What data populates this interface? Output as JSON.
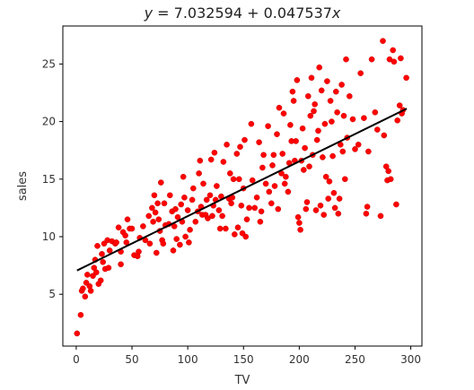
{
  "chart_data": {
    "type": "scatter",
    "title": "y = 7.032594 + 0.047537x",
    "title_parts": {
      "y": "y",
      "eq": " = 7.032594 + 0.047537",
      "x": "x"
    },
    "xlabel": "TV",
    "ylabel": "sales",
    "xlim": [
      -12,
      310
    ],
    "ylim": [
      0.5,
      28.3
    ],
    "xticks": [
      0,
      50,
      100,
      150,
      200,
      250,
      300
    ],
    "yticks": [
      5,
      10,
      15,
      20,
      25
    ],
    "grid": false,
    "colors": {
      "points": "#ff0000",
      "points_edge": "#c00000",
      "line": "#000000",
      "axes": "#000000"
    },
    "regression": {
      "intercept": 7.032594,
      "slope": 0.047537,
      "x_range": [
        0.7,
        296.4
      ]
    },
    "points": [
      [
        0.7,
        1.6
      ],
      [
        4,
        3.2
      ],
      [
        5,
        5.3
      ],
      [
        6,
        5.5
      ],
      [
        8,
        4.8
      ],
      [
        9,
        6.0
      ],
      [
        10,
        6.7
      ],
      [
        12,
        5.7
      ],
      [
        13,
        5.3
      ],
      [
        15,
        6.6
      ],
      [
        16,
        7.3
      ],
      [
        17,
        8.0
      ],
      [
        18,
        6.9
      ],
      [
        19,
        9.2
      ],
      [
        20,
        5.9
      ],
      [
        22,
        6.2
      ],
      [
        23,
        8.5
      ],
      [
        24,
        7.8
      ],
      [
        25,
        9.4
      ],
      [
        26,
        7.2
      ],
      [
        28,
        9.7
      ],
      [
        29,
        7.3
      ],
      [
        30,
        8.8
      ],
      [
        32,
        9.6
      ],
      [
        35,
        9.4
      ],
      [
        36,
        9.5
      ],
      [
        38,
        10.8
      ],
      [
        40,
        8.7
      ],
      [
        40,
        7.6
      ],
      [
        42,
        10.4
      ],
      [
        44,
        10.1
      ],
      [
        45,
        9.5
      ],
      [
        46,
        11.5
      ],
      [
        48,
        10.7
      ],
      [
        50,
        10.7
      ],
      [
        52,
        8.4
      ],
      [
        55,
        8.3
      ],
      [
        56,
        8.7
      ],
      [
        57,
        9.9
      ],
      [
        60,
        10.9
      ],
      [
        62,
        9.7
      ],
      [
        65,
        11.8
      ],
      [
        66,
        9.4
      ],
      [
        68,
        12.5
      ],
      [
        69,
        11.3
      ],
      [
        70,
        13.6
      ],
      [
        71,
        12.1
      ],
      [
        72,
        8.6
      ],
      [
        73,
        12.9
      ],
      [
        74,
        11.5
      ],
      [
        75,
        10.5
      ],
      [
        76,
        14.7
      ],
      [
        77,
        9.7
      ],
      [
        78,
        9.4
      ],
      [
        79,
        12.9
      ],
      [
        80,
        11.0
      ],
      [
        83,
        11.1
      ],
      [
        84,
        13.6
      ],
      [
        86,
        12.2
      ],
      [
        87,
        8.8
      ],
      [
        88,
        10.9
      ],
      [
        89,
        12.4
      ],
      [
        90,
        9.8
      ],
      [
        91,
        11.7
      ],
      [
        93,
        9.3
      ],
      [
        94,
        12.8
      ],
      [
        95,
        11.3
      ],
      [
        96,
        15.2
      ],
      [
        97,
        13.4
      ],
      [
        98,
        10.0
      ],
      [
        100,
        12.3
      ],
      [
        101,
        9.5
      ],
      [
        102,
        10.6
      ],
      [
        104,
        13.2
      ],
      [
        105,
        14.2
      ],
      [
        107,
        11.3
      ],
      [
        109,
        12.2
      ],
      [
        110,
        15.5
      ],
      [
        111,
        16.6
      ],
      [
        112,
        12.6
      ],
      [
        113,
        11.9
      ],
      [
        114,
        14.6
      ],
      [
        116,
        11.9
      ],
      [
        117,
        13.2
      ],
      [
        118,
        11.6
      ],
      [
        120,
        13.6
      ],
      [
        121,
        16.7
      ],
      [
        122,
        11.8
      ],
      [
        123,
        12.7
      ],
      [
        124,
        17.3
      ],
      [
        125,
        13.2
      ],
      [
        126,
        14.4
      ],
      [
        128,
        12.3
      ],
      [
        129,
        10.7
      ],
      [
        130,
        13.5
      ],
      [
        131,
        11.8
      ],
      [
        132,
        16.5
      ],
      [
        134,
        10.7
      ],
      [
        135,
        18.0
      ],
      [
        137,
        13.3
      ],
      [
        138,
        15.5
      ],
      [
        139,
        12.9
      ],
      [
        140,
        13.4
      ],
      [
        141,
        15.0
      ],
      [
        142,
        10.2
      ],
      [
        144,
        17.2
      ],
      [
        145,
        10.8
      ],
      [
        146,
        15.0
      ],
      [
        147,
        17.8
      ],
      [
        148,
        12.7
      ],
      [
        149,
        10.3
      ],
      [
        150,
        14.2
      ],
      [
        151,
        18.4
      ],
      [
        152,
        10.0
      ],
      [
        153,
        11.5
      ],
      [
        155,
        12.5
      ],
      [
        157,
        19.8
      ],
      [
        158,
        14.9
      ],
      [
        160,
        12.5
      ],
      [
        162,
        13.4
      ],
      [
        164,
        18.2
      ],
      [
        165,
        11.3
      ],
      [
        166,
        12.2
      ],
      [
        167,
        16.0
      ],
      [
        168,
        17.1
      ],
      [
        170,
        14.6
      ],
      [
        172,
        19.6
      ],
      [
        173,
        13.9
      ],
      [
        175,
        12.9
      ],
      [
        176,
        16.2
      ],
      [
        177,
        17.1
      ],
      [
        178,
        14.4
      ],
      [
        180,
        18.9
      ],
      [
        181,
        12.4
      ],
      [
        182,
        21.2
      ],
      [
        184,
        15.5
      ],
      [
        185,
        17.2
      ],
      [
        186,
        20.7
      ],
      [
        187,
        14.6
      ],
      [
        188,
        15.2
      ],
      [
        190,
        13.9
      ],
      [
        191,
        16.4
      ],
      [
        192,
        19.7
      ],
      [
        193,
        18.3
      ],
      [
        194,
        22.6
      ],
      [
        195,
        21.8
      ],
      [
        196,
        16.6
      ],
      [
        197,
        18.3
      ],
      [
        198,
        23.6
      ],
      [
        199,
        11.7
      ],
      [
        200,
        11.2
      ],
      [
        201,
        10.6
      ],
      [
        202,
        16.6
      ],
      [
        203,
        19.4
      ],
      [
        204,
        15.8
      ],
      [
        205,
        17.7
      ],
      [
        206,
        12.4
      ],
      [
        207,
        13.0
      ],
      [
        208,
        22.2
      ],
      [
        209,
        16.1
      ],
      [
        210,
        20.5
      ],
      [
        211,
        23.8
      ],
      [
        212,
        17.1
      ],
      [
        213,
        20.9
      ],
      [
        214,
        21.5
      ],
      [
        215,
        12.3
      ],
      [
        216,
        18.4
      ],
      [
        217,
        19.2
      ],
      [
        218,
        24.7
      ],
      [
        219,
        12.7
      ],
      [
        220,
        22.7
      ],
      [
        221,
        16.9
      ],
      [
        222,
        11.9
      ],
      [
        223,
        19.8
      ],
      [
        224,
        15.2
      ],
      [
        225,
        23.5
      ],
      [
        226,
        13.3
      ],
      [
        227,
        14.8
      ],
      [
        228,
        21.8
      ],
      [
        229,
        20.0
      ],
      [
        230,
        17.0
      ],
      [
        231,
        13.8
      ],
      [
        232,
        12.5
      ],
      [
        233,
        22.6
      ],
      [
        234,
        20.8
      ],
      [
        235,
        12.0
      ],
      [
        236,
        13.3
      ],
      [
        237,
        18.0
      ],
      [
        238,
        23.2
      ],
      [
        239,
        17.4
      ],
      [
        240,
        20.5
      ],
      [
        241,
        15.0
      ],
      [
        242,
        25.4
      ],
      [
        243,
        18.6
      ],
      [
        245,
        22.2
      ],
      [
        248,
        20.2
      ],
      [
        250,
        17.6
      ],
      [
        253,
        18.0
      ],
      [
        255,
        24.2
      ],
      [
        258,
        20.3
      ],
      [
        260,
        12.0
      ],
      [
        261,
        12.6
      ],
      [
        262,
        17.4
      ],
      [
        265,
        25.4
      ],
      [
        268,
        20.8
      ],
      [
        270,
        19.3
      ],
      [
        273,
        11.8
      ],
      [
        275,
        27.0
      ],
      [
        276,
        18.8
      ],
      [
        278,
        16.1
      ],
      [
        279,
        14.9
      ],
      [
        280,
        15.7
      ],
      [
        281,
        25.4
      ],
      [
        282,
        15.0
      ],
      [
        284,
        26.2
      ],
      [
        285,
        25.2
      ],
      [
        287,
        12.8
      ],
      [
        288,
        20.1
      ],
      [
        290,
        21.4
      ],
      [
        291,
        25.5
      ],
      [
        292,
        20.7
      ],
      [
        293,
        21.0
      ],
      [
        296,
        23.8
      ]
    ]
  }
}
